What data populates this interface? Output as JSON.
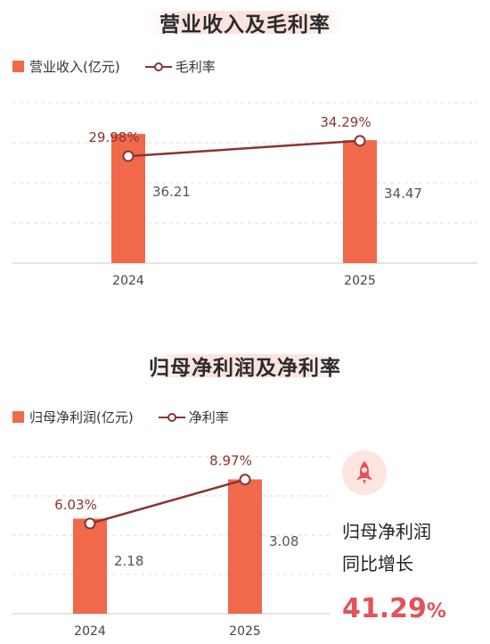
{
  "colors": {
    "bar": "#f0694a",
    "line": "#8a3434",
    "grid": "#dcdcdc",
    "highlight": "#e5525b"
  },
  "chart_data": [
    {
      "type": "bar",
      "title": "营业收入及毛利率",
      "categories": [
        "2024",
        "2025"
      ],
      "series": [
        {
          "name": "营业收入(亿元)",
          "type": "bar",
          "values": [
            36.21,
            34.47
          ],
          "labels": [
            "36.21",
            "34.47"
          ]
        },
        {
          "name": "毛利率",
          "type": "line",
          "values": [
            29.98,
            34.29
          ],
          "labels": [
            "29.98%",
            "34.29%"
          ]
        }
      ],
      "ylim": [
        0,
        45
      ],
      "y2lim": [
        0,
        45
      ],
      "grid": true,
      "legend": "top-left"
    },
    {
      "type": "bar",
      "title": "归母净利润及净利率",
      "categories": [
        "2024",
        "2025"
      ],
      "series": [
        {
          "name": "归母净利润(亿元)",
          "type": "bar",
          "values": [
            2.18,
            3.08
          ],
          "labels": [
            "2.18",
            "3.08"
          ]
        },
        {
          "name": "净利率",
          "type": "line",
          "values": [
            6.03,
            8.97
          ],
          "labels": [
            "6.03%",
            "8.97%"
          ]
        }
      ],
      "ylim": [
        0,
        3.6
      ],
      "y2lim": [
        0,
        10.5
      ],
      "grid": true,
      "legend": "top-left"
    }
  ],
  "growth": {
    "icon": "rocket-icon",
    "line1": "归母净利润",
    "line2": "同比增长",
    "number": "41.29",
    "unit": "%"
  }
}
